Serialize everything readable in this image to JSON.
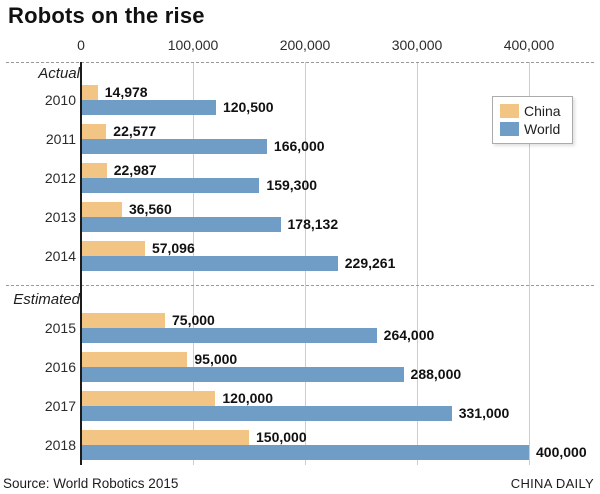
{
  "title": "Robots on the rise",
  "footer": {
    "source": "Source: World Robotics 2015",
    "credit": "CHINA DAILY"
  },
  "colors": {
    "china": "#f3c584",
    "world": "#6f9dc6",
    "axis_line": "#1c1c1c",
    "gridline": "#cdcdcd",
    "dashed_rule": "#9a9a9a",
    "text": "#1f1f1f"
  },
  "legend": {
    "position": "top-right",
    "items": [
      {
        "label": "China",
        "color": "#f3c584"
      },
      {
        "label": "World",
        "color": "#6f9dc6"
      }
    ]
  },
  "chart_data": {
    "type": "bar",
    "orientation": "horizontal",
    "title": "Robots on the rise",
    "xlabel": "",
    "ylabel": "",
    "xlim": [
      0,
      400000
    ],
    "grid": true,
    "x_ticks": [
      {
        "value": 0,
        "label": "0"
      },
      {
        "value": 100000,
        "label": "100,000"
      },
      {
        "value": 200000,
        "label": "200,000"
      },
      {
        "value": 300000,
        "label": "300,000"
      },
      {
        "value": 400000,
        "label": "400,000"
      }
    ],
    "categories": [
      "2010",
      "2011",
      "2012",
      "2013",
      "2014",
      "2015",
      "2016",
      "2017",
      "2018"
    ],
    "series": [
      {
        "name": "China",
        "values": [
          14978,
          22577,
          22987,
          36560,
          57096,
          75000,
          95000,
          120000,
          150000
        ]
      },
      {
        "name": "World",
        "values": [
          120500,
          166000,
          159300,
          178132,
          229261,
          264000,
          288000,
          331000,
          400000
        ]
      }
    ],
    "sections": [
      {
        "label": "Actual",
        "rows": [
          {
            "year": "2010",
            "china": 14978,
            "china_label": "14,978",
            "world": 120500,
            "world_label": "120,500"
          },
          {
            "year": "2011",
            "china": 22577,
            "china_label": "22,577",
            "world": 166000,
            "world_label": "166,000"
          },
          {
            "year": "2012",
            "china": 22987,
            "china_label": "22,987",
            "world": 159300,
            "world_label": "159,300"
          },
          {
            "year": "2013",
            "china": 36560,
            "china_label": "36,560",
            "world": 178132,
            "world_label": "178,132"
          },
          {
            "year": "2014",
            "china": 57096,
            "china_label": "57,096",
            "world": 229261,
            "world_label": "229,261"
          }
        ]
      },
      {
        "label": "Estimated",
        "rows": [
          {
            "year": "2015",
            "china": 75000,
            "china_label": "75,000",
            "world": 264000,
            "world_label": "264,000"
          },
          {
            "year": "2016",
            "china": 95000,
            "china_label": "95,000",
            "world": 288000,
            "world_label": "288,000"
          },
          {
            "year": "2017",
            "china": 120000,
            "china_label": "120,000",
            "world": 331000,
            "world_label": "331,000"
          },
          {
            "year": "2018",
            "china": 150000,
            "china_label": "150,000",
            "world": 400000,
            "world_label": "400,000"
          }
        ]
      }
    ]
  }
}
